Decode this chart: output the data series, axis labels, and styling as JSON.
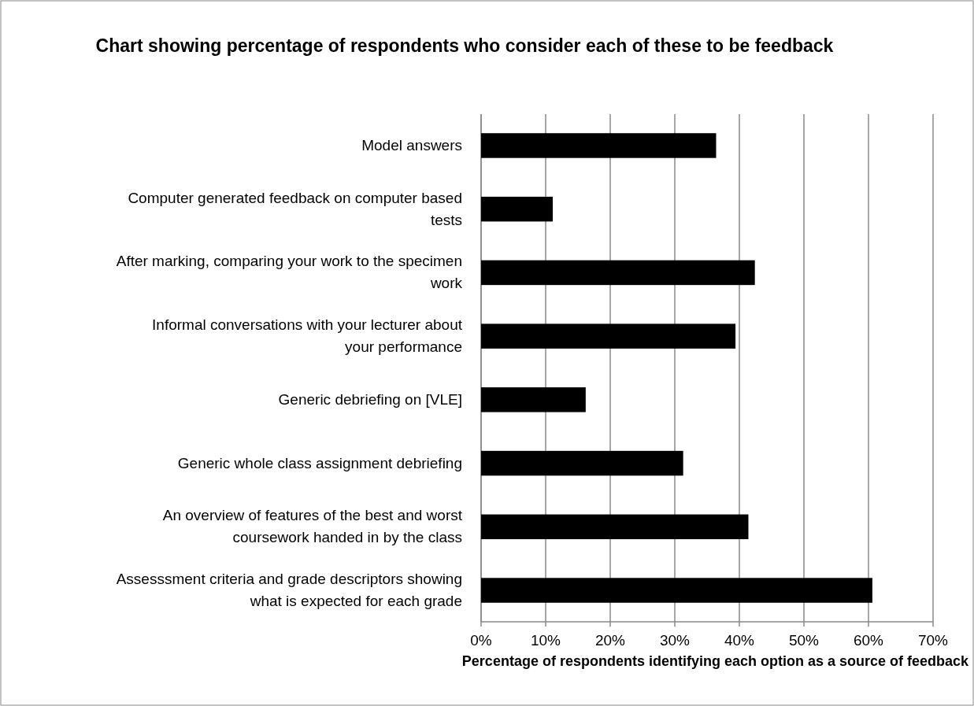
{
  "chart_data": {
    "type": "bar",
    "orientation": "horizontal",
    "title": "Chart showing percentage of respondents who consider each of these to be feedback",
    "xlabel": "Percentage of respondents identifying each option as a source of feedback",
    "categories": [
      "Model answers",
      "Computer generated feedback on computer based tests",
      "After marking, comparing your work to the specimen work",
      "Informal conversations with your lecturer about your performance",
      "Generic debriefing on [VLE]",
      "Generic whole class assignment debriefing",
      "An overview of features of the best and worst coursework handed in by the class",
      "Assesssment criteria and grade descriptors showing what is expected for each grade"
    ],
    "values": [
      36.4,
      11.1,
      42.4,
      39.4,
      16.2,
      31.3,
      41.4,
      60.6
    ],
    "color": "#000000",
    "xlim": [
      0,
      70
    ],
    "xticks": [
      {
        "value": 0,
        "label": "0%"
      },
      {
        "value": 10,
        "label": "10%"
      },
      {
        "value": 20,
        "label": "20%"
      },
      {
        "value": 30,
        "label": "30%"
      },
      {
        "value": 40,
        "label": "40%"
      },
      {
        "value": 50,
        "label": "50%"
      },
      {
        "value": 60,
        "label": "60%"
      },
      {
        "value": 70,
        "label": "70%"
      }
    ],
    "grid": "x"
  }
}
